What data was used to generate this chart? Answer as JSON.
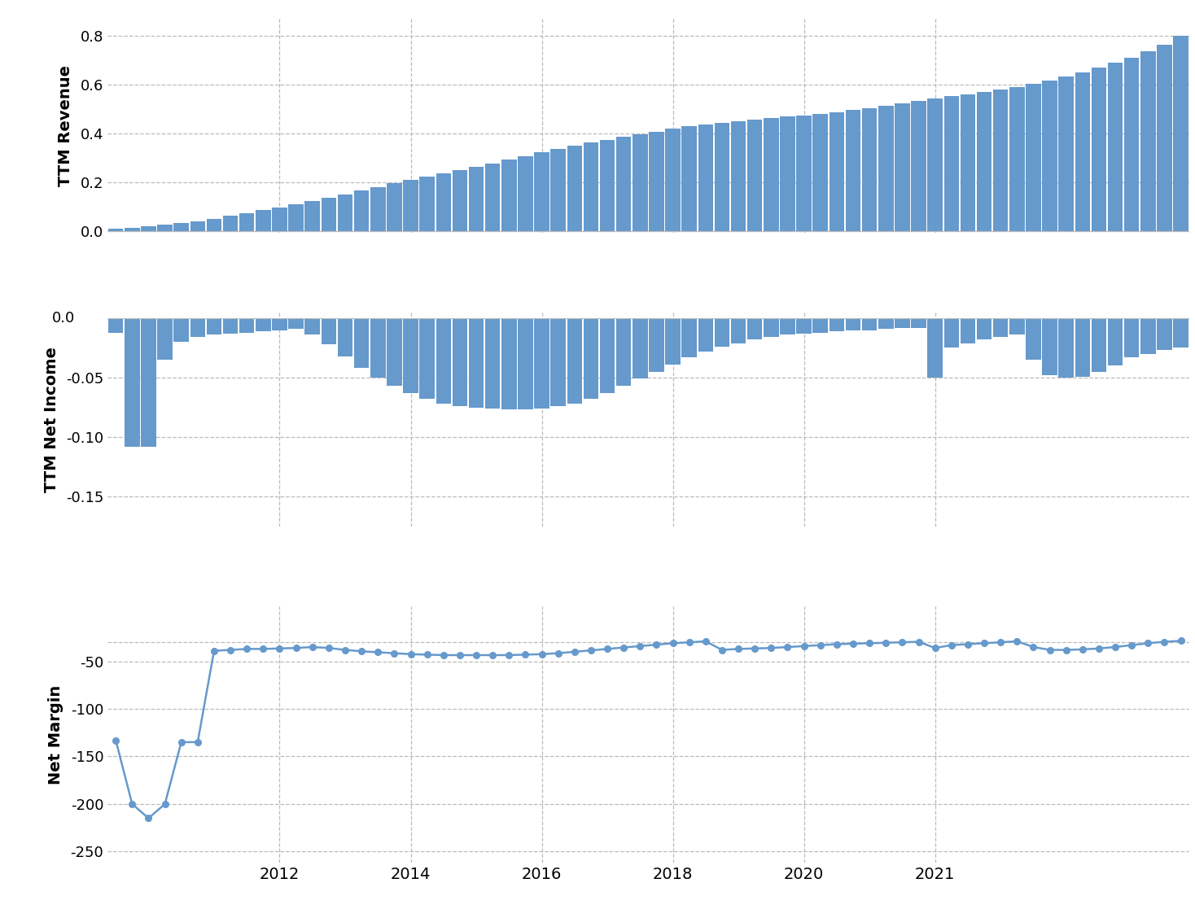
{
  "bar_color": "#6699cc",
  "line_color": "#6699cc",
  "background_color": "#ffffff",
  "grid_color": "#bbbbbb",
  "revenue": [
    0.009,
    0.013,
    0.019,
    0.026,
    0.033,
    0.041,
    0.051,
    0.062,
    0.073,
    0.085,
    0.097,
    0.11,
    0.123,
    0.137,
    0.151,
    0.165,
    0.18,
    0.195,
    0.21,
    0.222,
    0.235,
    0.248,
    0.262,
    0.277,
    0.292,
    0.307,
    0.322,
    0.336,
    0.35,
    0.362,
    0.374,
    0.385,
    0.396,
    0.407,
    0.418,
    0.428,
    0.437,
    0.444,
    0.45,
    0.456,
    0.462,
    0.468,
    0.474,
    0.48,
    0.487,
    0.495,
    0.504,
    0.514,
    0.524,
    0.534,
    0.543,
    0.551,
    0.559,
    0.568,
    0.578,
    0.589,
    0.601,
    0.616,
    0.632,
    0.65,
    0.668,
    0.688,
    0.71,
    0.735,
    0.762,
    0.8
  ],
  "net_income": [
    -0.012,
    -0.108,
    -0.108,
    -0.035,
    -0.02,
    -0.016,
    -0.014,
    -0.013,
    -0.012,
    -0.011,
    -0.01,
    -0.009,
    -0.014,
    -0.022,
    -0.032,
    -0.042,
    -0.05,
    -0.057,
    -0.063,
    -0.068,
    -0.072,
    -0.074,
    -0.075,
    -0.076,
    -0.077,
    -0.077,
    -0.076,
    -0.074,
    -0.072,
    -0.068,
    -0.063,
    -0.057,
    -0.051,
    -0.045,
    -0.039,
    -0.033,
    -0.028,
    -0.024,
    -0.021,
    -0.018,
    -0.016,
    -0.014,
    -0.013,
    -0.012,
    -0.011,
    -0.01,
    -0.01,
    -0.009,
    -0.008,
    -0.008,
    -0.05,
    -0.025,
    -0.021,
    -0.018,
    -0.016,
    -0.014,
    -0.035,
    -0.048,
    -0.05,
    -0.049,
    -0.045,
    -0.04,
    -0.033,
    -0.03,
    -0.027,
    -0.025
  ],
  "net_margin": [
    -133.0,
    -200.0,
    -215.0,
    -200.0,
    -135.0,
    -135.0,
    -39.0,
    -38.0,
    -37.0,
    -37.0,
    -36.5,
    -36.0,
    -35.0,
    -36.0,
    -38.0,
    -39.5,
    -40.5,
    -41.5,
    -42.5,
    -43.0,
    -43.5,
    -43.5,
    -43.5,
    -43.5,
    -43.5,
    -43.0,
    -42.5,
    -41.5,
    -40.0,
    -38.5,
    -37.0,
    -35.5,
    -34.0,
    -32.5,
    -31.0,
    -30.0,
    -29.0,
    -38.0,
    -37.0,
    -36.5,
    -36.0,
    -35.0,
    -34.0,
    -33.0,
    -32.0,
    -31.5,
    -31.0,
    -30.5,
    -30.0,
    -29.5,
    -36.0,
    -33.0,
    -32.0,
    -31.0,
    -30.0,
    -29.0,
    -35.0,
    -38.0,
    -38.0,
    -37.5,
    -36.5,
    -35.0,
    -33.0,
    -31.0,
    -29.5,
    -28.5
  ],
  "n_bars": 66,
  "ylabel1": "TTM Revenue",
  "ylabel2": "TTM Net Income",
  "ylabel3": "Net Margin"
}
